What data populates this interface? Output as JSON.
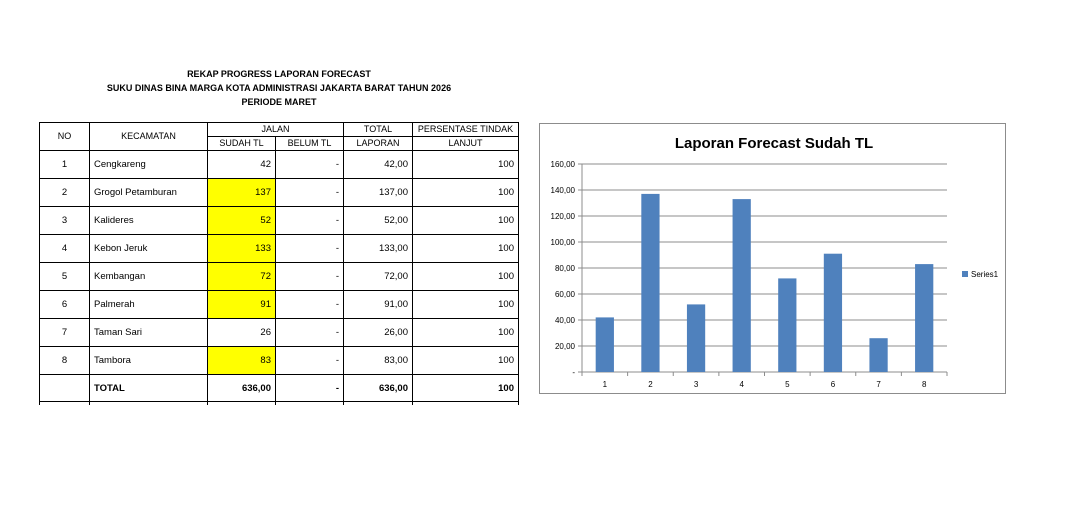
{
  "header": {
    "line1": "REKAP PROGRESS LAPORAN FORECAST",
    "line2": "SUKU DINAS BINA MARGA KOTA ADMINISTRASI JAKARTA BARAT TAHUN 2026",
    "line3": "PERIODE MARET"
  },
  "table": {
    "headers": {
      "no": "NO",
      "kecamatan": "KECAMATAN",
      "jalan": "JALAN",
      "sudah": "SUDAH TL",
      "belum": "BELUM TL",
      "total1": "TOTAL",
      "total2": "LAPORAN",
      "pct1": "PERSENTASE TINDAK",
      "pct2": "LANJUT"
    },
    "rows": [
      {
        "no": "1",
        "kecamatan": "Cengkareng",
        "sudah": "42",
        "belum": "-",
        "total": "42,00",
        "pct": "100",
        "highlight": false
      },
      {
        "no": "2",
        "kecamatan": "Grogol Petamburan",
        "sudah": "137",
        "belum": "-",
        "total": "137,00",
        "pct": "100",
        "highlight": true
      },
      {
        "no": "3",
        "kecamatan": "Kalideres",
        "sudah": "52",
        "belum": "-",
        "total": "52,00",
        "pct": "100",
        "highlight": true
      },
      {
        "no": "4",
        "kecamatan": "Kebon Jeruk",
        "sudah": "133",
        "belum": "-",
        "total": "133,00",
        "pct": "100",
        "highlight": true
      },
      {
        "no": "5",
        "kecamatan": "Kembangan",
        "sudah": "72",
        "belum": "-",
        "total": "72,00",
        "pct": "100",
        "highlight": true
      },
      {
        "no": "6",
        "kecamatan": "Palmerah",
        "sudah": "91",
        "belum": "-",
        "total": "91,00",
        "pct": "100",
        "highlight": true
      },
      {
        "no": "7",
        "kecamatan": "Taman Sari",
        "sudah": "26",
        "belum": "-",
        "total": "26,00",
        "pct": "100",
        "highlight": false
      },
      {
        "no": "8",
        "kecamatan": "Tambora",
        "sudah": "83",
        "belum": "-",
        "total": "83,00",
        "pct": "100",
        "highlight": true
      }
    ],
    "total": {
      "label": "TOTAL",
      "sudah": "636,00",
      "belum": "-",
      "total": "636,00",
      "pct": "100"
    },
    "highlight_color": "#ffff00"
  },
  "chart_data": {
    "type": "bar",
    "title": "Laporan Forecast Sudah TL",
    "categories": [
      "1",
      "2",
      "3",
      "4",
      "5",
      "6",
      "7",
      "8"
    ],
    "series": [
      {
        "name": "Series1",
        "values": [
          42,
          137,
          52,
          133,
          72,
          91,
          26,
          83
        ],
        "color": "#4f81bd"
      }
    ],
    "ylim": [
      0,
      160
    ],
    "yticks": [
      0,
      20,
      40,
      60,
      80,
      100,
      120,
      140,
      160
    ],
    "ytick_labels": [
      "-",
      "20,00",
      "40,00",
      "60,00",
      "80,00",
      "100,00",
      "120,00",
      "140,00",
      "160,00"
    ],
    "grid": true,
    "legend": "right"
  }
}
